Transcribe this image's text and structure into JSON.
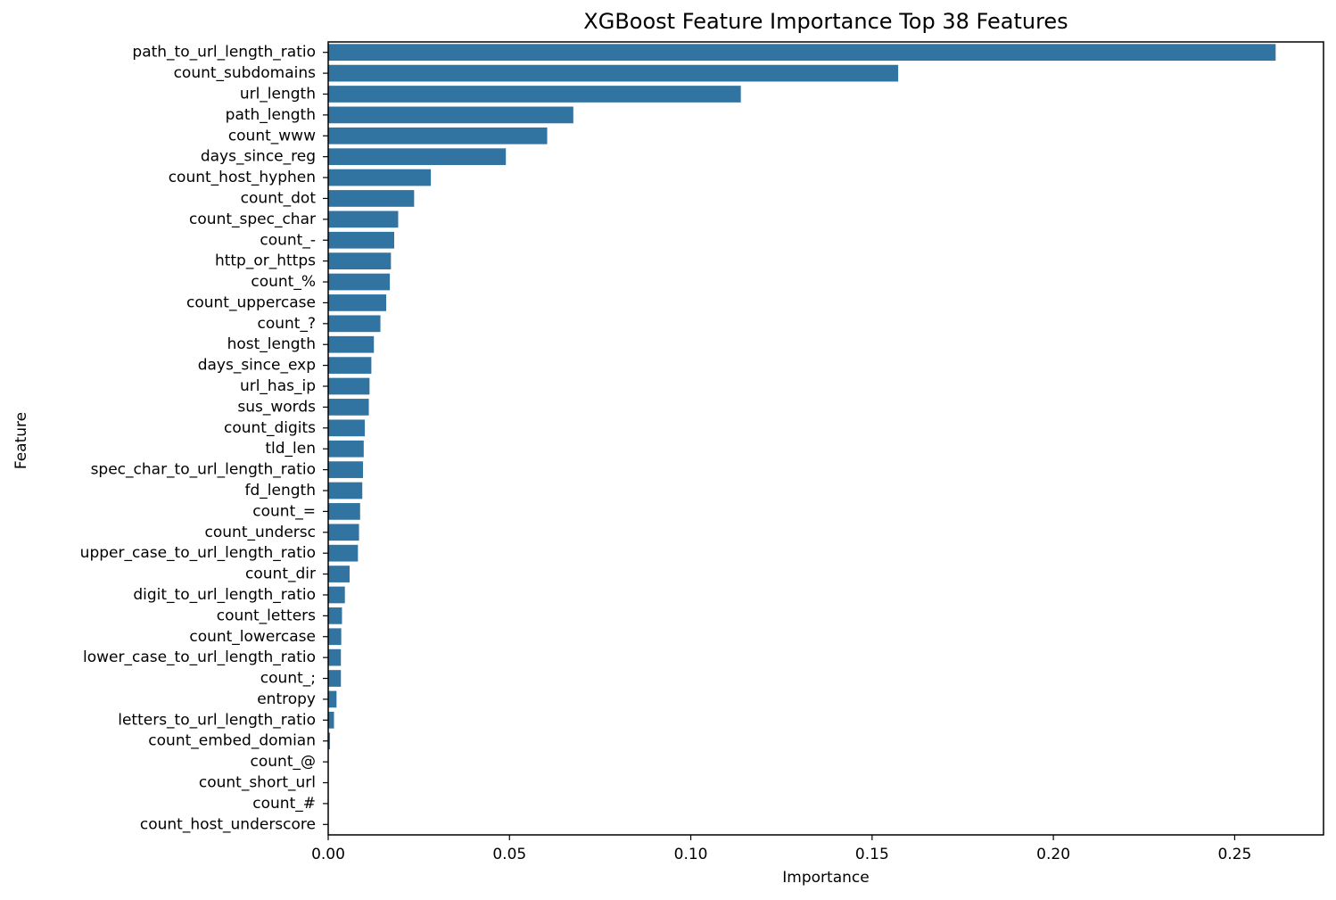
{
  "chart_data": {
    "type": "bar",
    "orientation": "horizontal",
    "title": "XGBoost Feature Importance Top 38 Features",
    "xlabel": "Importance",
    "ylabel": "Feature",
    "xlim": [
      0,
      0.2745
    ],
    "xticks": [
      0.0,
      0.05,
      0.1,
      0.15,
      0.2,
      0.25
    ],
    "xtick_labels": [
      "0.00",
      "0.05",
      "0.10",
      "0.15",
      "0.20",
      "0.25"
    ],
    "grid": false,
    "bar_color": "#3274a1",
    "categories": [
      "path_to_url_length_ratio",
      "count_subdomains",
      "url_length",
      "path_length",
      "count_www",
      "days_since_reg",
      "count_host_hyphen",
      "count_dot",
      "count_spec_char",
      "count_-",
      "http_or_https",
      "count_%",
      "count_uppercase",
      "count_?",
      "host_length ",
      "days_since_exp",
      "url_has_ip",
      "sus_words",
      "count_digits",
      "tld_len",
      "spec_char_to_url_length_ratio",
      "fd_length",
      "count_=",
      "count_undersc",
      "upper_case_to_url_length_ratio",
      "count_dir",
      "digit_to_url_length_ratio",
      "count_letters",
      "count_lowercase",
      "lower_case_to_url_length_ratio",
      "count_;",
      "entropy",
      "letters_to_url_length_ratio",
      "count_embed_domian",
      "count_@",
      "count_short_url",
      "count_#",
      "count_host_underscore"
    ],
    "values": [
      0.2613,
      0.1572,
      0.1138,
      0.0676,
      0.0604,
      0.049,
      0.0283,
      0.0237,
      0.0193,
      0.0182,
      0.0173,
      0.017,
      0.016,
      0.0144,
      0.0126,
      0.0119,
      0.0114,
      0.0112,
      0.0101,
      0.0098,
      0.0096,
      0.0094,
      0.0088,
      0.0085,
      0.0082,
      0.0059,
      0.0046,
      0.0038,
      0.0036,
      0.0035,
      0.0035,
      0.0023,
      0.0016,
      0.0005,
      0.0,
      0.0,
      0.0,
      0.0
    ]
  }
}
